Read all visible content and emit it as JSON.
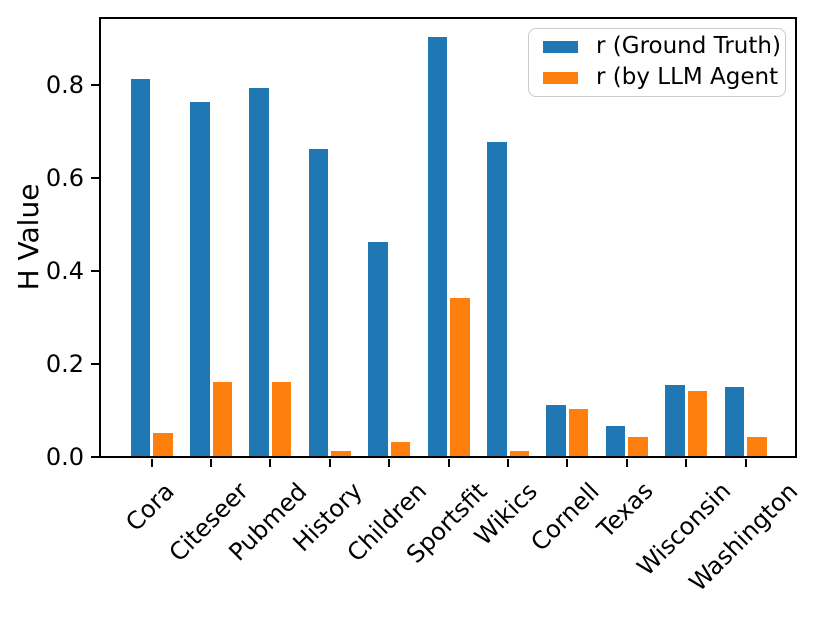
{
  "chart_data": {
    "type": "bar",
    "title": "",
    "xlabel": "",
    "ylabel": "H Value",
    "categories": [
      "Cora",
      "Citeseer",
      "Pubmed",
      "History",
      "Children",
      "Sportsfit",
      "Wikics",
      "Cornell",
      "Texas",
      "Wisconsin",
      "Washington"
    ],
    "series": [
      {
        "name": "r (Ground Truth)",
        "color": "#1f77b4",
        "values": [
          0.81,
          0.76,
          0.79,
          0.66,
          0.46,
          0.9,
          0.675,
          0.11,
          0.065,
          0.152,
          0.148
        ]
      },
      {
        "name": "r (by LLM Agent",
        "color": "#ff7f0e",
        "values": [
          0.05,
          0.16,
          0.16,
          0.01,
          0.03,
          0.34,
          0.01,
          0.1,
          0.04,
          0.14,
          0.04
        ]
      }
    ],
    "yticks": [
      0.0,
      0.2,
      0.4,
      0.6,
      0.8
    ],
    "ytick_labels": [
      "0.0",
      "0.2",
      "0.4",
      "0.6",
      "0.8"
    ],
    "ylim": [
      0,
      0.945
    ],
    "xtick_rotation_deg": 45,
    "grid": false,
    "legend_position": "upper right",
    "axis_color": "#000000",
    "background_color": "#ffffff"
  }
}
